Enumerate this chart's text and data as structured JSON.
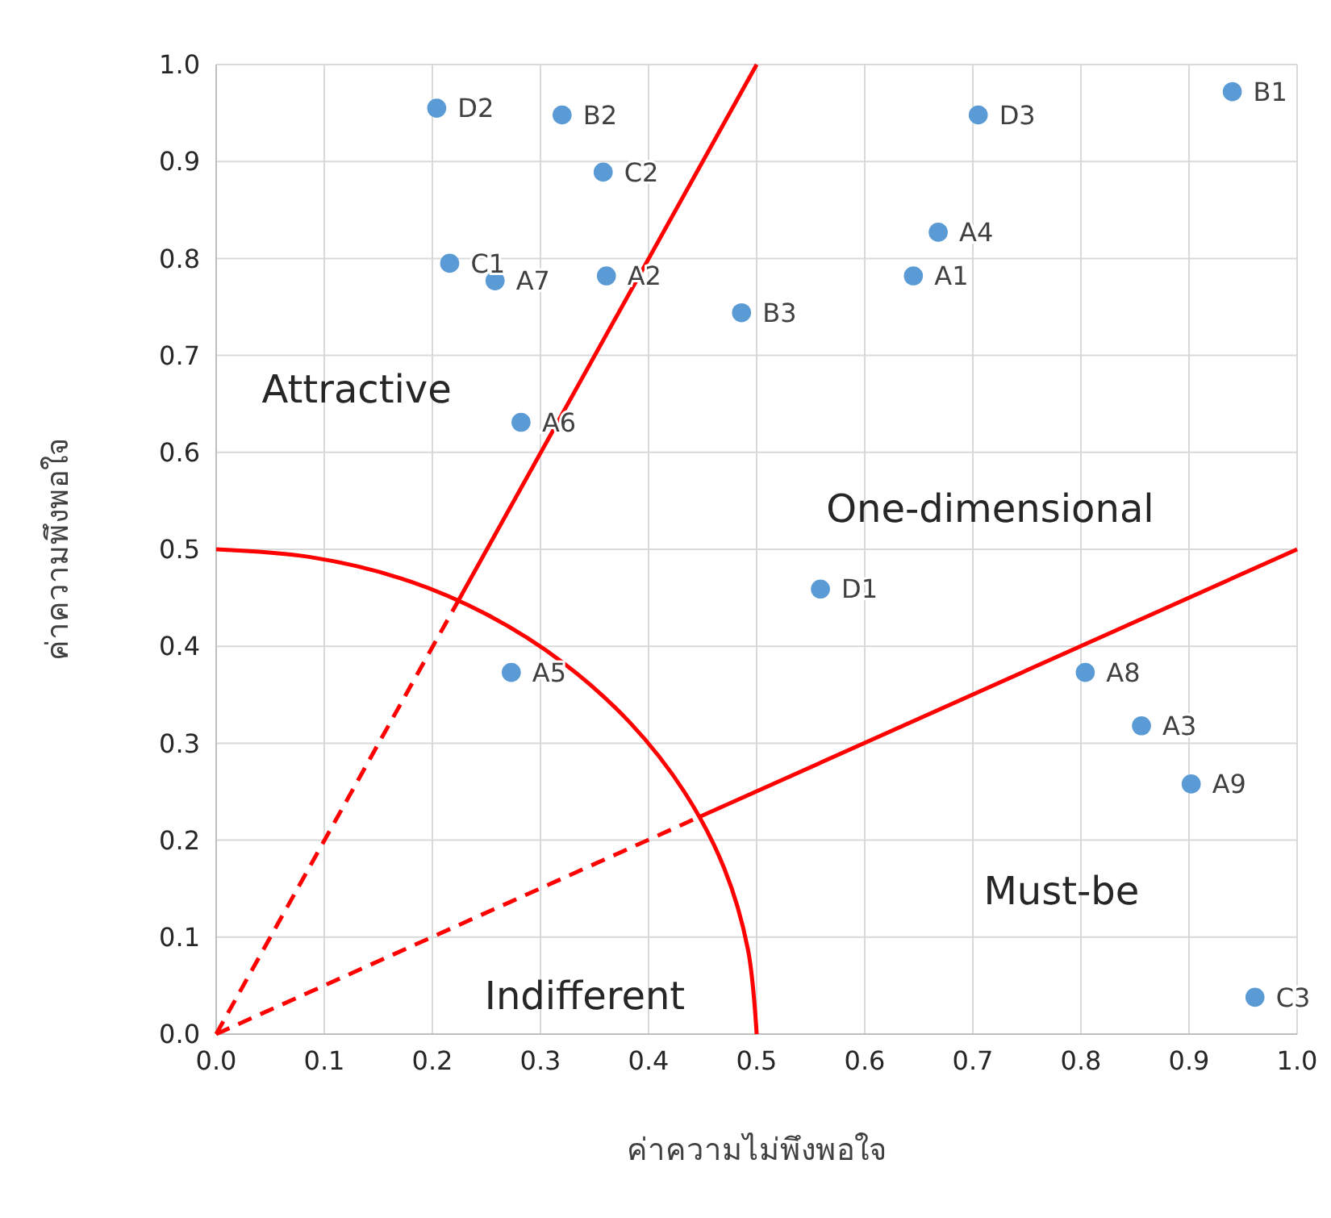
{
  "chart_data": {
    "type": "scatter",
    "xlabel": "ค่าความไม่พึงพอใจ",
    "ylabel": "ค่าความพึงพอใจ",
    "xlim": [
      0,
      1
    ],
    "ylim": [
      0,
      1
    ],
    "xticks": [
      {
        "value": 0,
        "label": "0.0"
      },
      {
        "value": 0.1,
        "label": "0.1"
      },
      {
        "value": 0.2,
        "label": "0.2"
      },
      {
        "value": 0.3,
        "label": "0.3"
      },
      {
        "value": 0.4,
        "label": "0.4"
      },
      {
        "value": 0.5,
        "label": "0.5"
      },
      {
        "value": 0.6,
        "label": "0.6"
      },
      {
        "value": 0.7,
        "label": "0.7"
      },
      {
        "value": 0.8,
        "label": "0.8"
      },
      {
        "value": 0.9,
        "label": "0.9"
      },
      {
        "value": 1,
        "label": "1.0"
      }
    ],
    "yticks": [
      {
        "value": 0,
        "label": "0.0"
      },
      {
        "value": 0.1,
        "label": "0.1"
      },
      {
        "value": 0.2,
        "label": "0.2"
      },
      {
        "value": 0.3,
        "label": "0.3"
      },
      {
        "value": 0.4,
        "label": "0.4"
      },
      {
        "value": 0.5,
        "label": "0.5"
      },
      {
        "value": 0.6,
        "label": "0.6"
      },
      {
        "value": 0.7,
        "label": "0.7"
      },
      {
        "value": 0.8,
        "label": "0.8"
      },
      {
        "value": 0.9,
        "label": "0.9"
      },
      {
        "value": 1,
        "label": "1.0"
      }
    ],
    "grid": true,
    "series": [
      {
        "color": "#5b9bd5",
        "marker": "circle",
        "x": [
          0.204,
          0.32,
          0.358,
          0.705,
          0.94,
          0.668,
          0.216,
          0.258,
          0.361,
          0.645,
          0.486,
          0.282,
          0.559,
          0.273,
          0.804,
          0.856,
          0.902,
          0.961
        ],
        "values": [
          0.955,
          0.948,
          0.889,
          0.948,
          0.972,
          0.827,
          0.795,
          0.777,
          0.782,
          0.782,
          0.744,
          0.631,
          0.459,
          0.373,
          0.373,
          0.318,
          0.258,
          0.038
        ],
        "value_labels": [
          "D2",
          "B2",
          "C2",
          "D3",
          "B1",
          "A4",
          "C1",
          "A7",
          "A2",
          "A1",
          "B3",
          "A6",
          "D1",
          "A5",
          "A8",
          "A3",
          "A9",
          "C3"
        ]
      },
      {
        "type": "line",
        "color": "#ff0000",
        "line_style": "dashed",
        "marker": "none",
        "x": [
          0,
          0.224
        ],
        "values": [
          0,
          0.447
        ]
      },
      {
        "type": "line",
        "color": "#ff0000",
        "line_style": "solid",
        "marker": "none",
        "x": [
          0.224,
          0.5
        ],
        "values": [
          0.447,
          1
        ]
      },
      {
        "type": "line",
        "color": "#ff0000",
        "line_style": "dashed",
        "marker": "none",
        "x": [
          0,
          0.447
        ],
        "values": [
          0,
          0.224
        ]
      },
      {
        "type": "line",
        "color": "#ff0000",
        "line_style": "solid",
        "marker": "none",
        "x": [
          0.447,
          1
        ],
        "values": [
          0.224,
          0.5
        ]
      },
      {
        "type": "line",
        "color": "#ff0000",
        "line_style": "solid",
        "marker": "none",
        "x": [
          0,
          0.087,
          0.171,
          0.25,
          0.321,
          0.383,
          0.433,
          0.47,
          0.492,
          0.5
        ],
        "values": [
          0.5,
          0.492,
          0.47,
          0.433,
          0.383,
          0.321,
          0.25,
          0.171,
          0.087,
          0
        ]
      }
    ],
    "annotations": [
      "Attractive",
      "One-dimensional",
      "Must-be",
      "Indifferent"
    ]
  }
}
